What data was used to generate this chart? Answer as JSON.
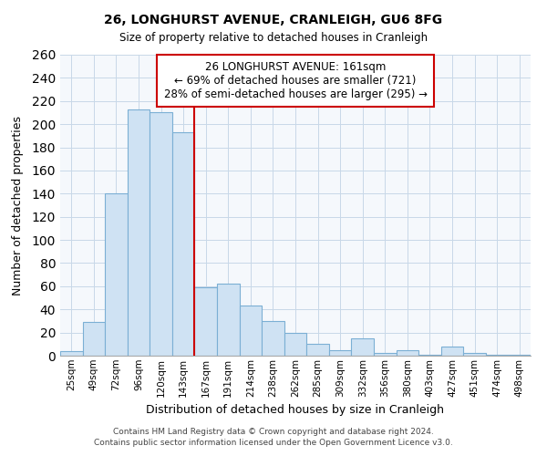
{
  "title": "26, LONGHURST AVENUE, CRANLEIGH, GU6 8FG",
  "subtitle": "Size of property relative to detached houses in Cranleigh",
  "xlabel": "Distribution of detached houses by size in Cranleigh",
  "ylabel": "Number of detached properties",
  "bar_labels": [
    "25sqm",
    "49sqm",
    "72sqm",
    "96sqm",
    "120sqm",
    "143sqm",
    "167sqm",
    "191sqm",
    "214sqm",
    "238sqm",
    "262sqm",
    "285sqm",
    "309sqm",
    "332sqm",
    "356sqm",
    "380sqm",
    "403sqm",
    "427sqm",
    "451sqm",
    "474sqm",
    "498sqm"
  ],
  "bar_values": [
    4,
    29,
    140,
    213,
    210,
    193,
    59,
    62,
    43,
    30,
    20,
    10,
    5,
    15,
    2,
    5,
    1,
    8,
    2,
    1,
    1
  ],
  "bar_color": "#cfe2f3",
  "bar_edge_color": "#7bafd4",
  "ylim": [
    0,
    260
  ],
  "yticks": [
    0,
    20,
    40,
    60,
    80,
    100,
    120,
    140,
    160,
    180,
    200,
    220,
    240,
    260
  ],
  "vline_color": "#cc0000",
  "annotation_title": "26 LONGHURST AVENUE: 161sqm",
  "annotation_line1": "← 69% of detached houses are smaller (721)",
  "annotation_line2": "28% of semi-detached houses are larger (295) →",
  "annotation_box_color": "#ffffff",
  "annotation_box_edge": "#cc0000",
  "footer1": "Contains HM Land Registry data © Crown copyright and database right 2024.",
  "footer2": "Contains public sector information licensed under the Open Government Licence v3.0.",
  "bg_color": "#f0f4f8"
}
